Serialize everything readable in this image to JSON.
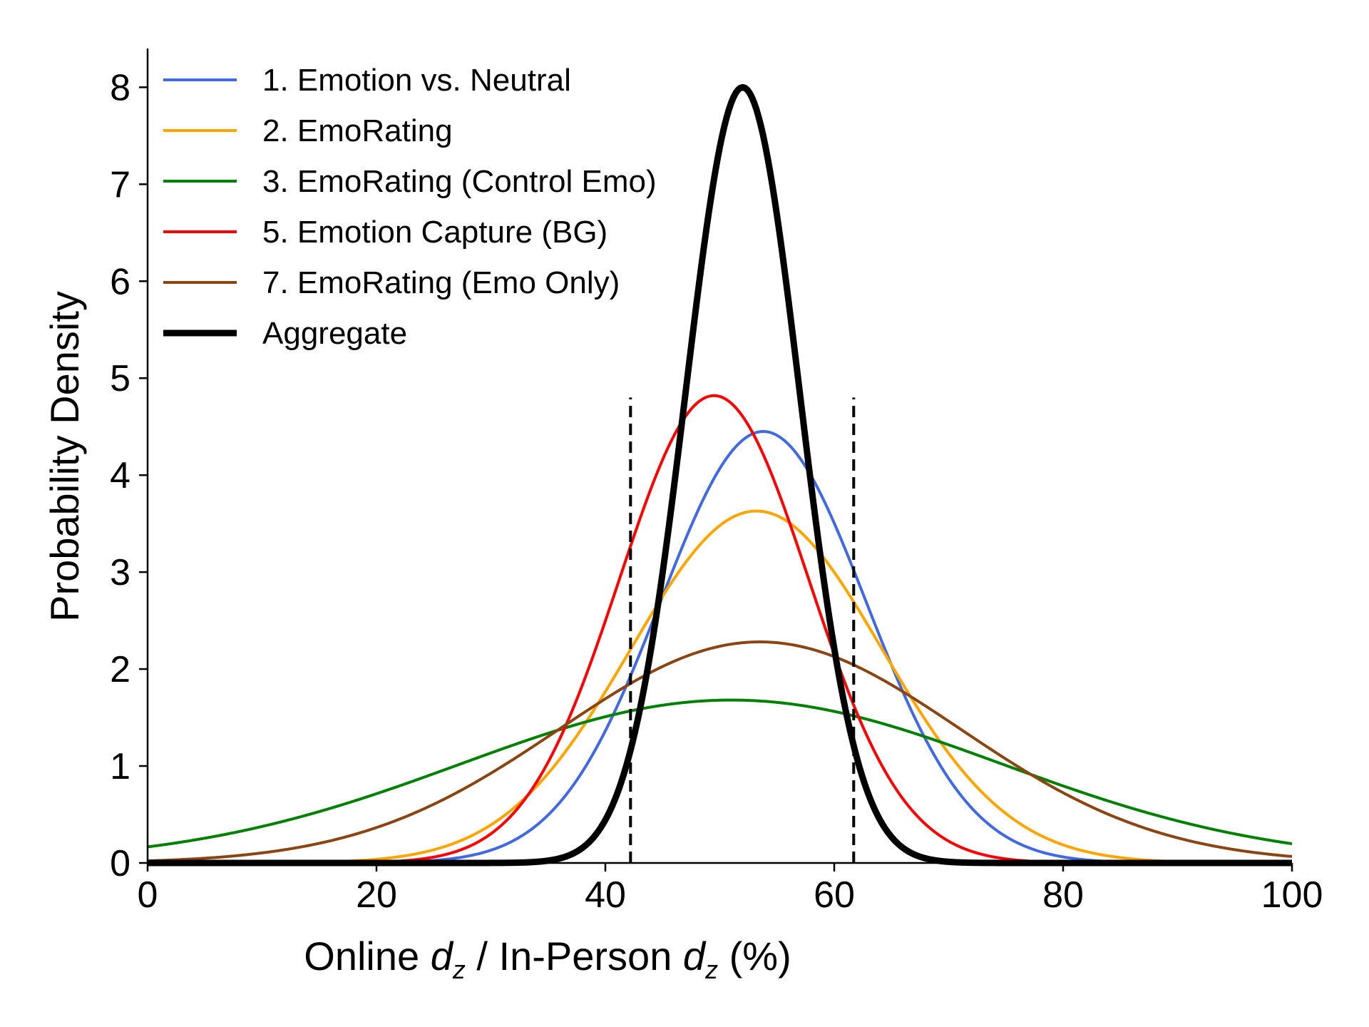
{
  "chart_data": {
    "type": "line",
    "title": "",
    "xlabel": {
      "prefix": "Online ",
      "var1_base": "d",
      "var1_sub": "z",
      "middle": " / In-Person ",
      "var2_base": "d",
      "var2_sub": "z",
      "suffix": " (%)"
    },
    "ylabel": "Probability Density",
    "xlim": [
      0,
      100
    ],
    "ylim": [
      0,
      8.4
    ],
    "xticks": [
      0,
      20,
      40,
      60,
      80,
      100
    ],
    "xtick_labels": [
      "0",
      "20",
      "40",
      "60",
      "80",
      "100"
    ],
    "yticks": [
      0,
      1,
      2,
      3,
      4,
      5,
      6,
      7,
      8
    ],
    "ytick_labels": [
      "0",
      "1",
      "2",
      "3",
      "4",
      "5",
      "6",
      "7",
      "8"
    ],
    "grid": false,
    "legend_position": "top-left",
    "series": [
      {
        "name": "1. Emotion vs. Neutral",
        "color": "#4169E1",
        "mean": 53.8,
        "sd": 8.97,
        "peak": 4.45,
        "stroke": "normal"
      },
      {
        "name": "2. EmoRating",
        "color": "#FFA500",
        "mean": 53.2,
        "sd": 11.0,
        "peak": 3.63,
        "stroke": "normal"
      },
      {
        "name": "3. EmoRating (Control Emo)",
        "color": "#008000",
        "mean": 51.0,
        "sd": 23.7,
        "peak": 1.68,
        "stroke": "normal"
      },
      {
        "name": "5. Emotion Capture (BG)",
        "color": "#FF0000",
        "mean": 49.5,
        "sd": 8.28,
        "peak": 4.82,
        "stroke": "normal"
      },
      {
        "name": "7. EmoRating (Emo Only)",
        "color": "#8B4513",
        "mean": 53.5,
        "sd": 17.5,
        "peak": 2.28,
        "stroke": "normal"
      },
      {
        "name": "Aggregate",
        "color": "#000000",
        "mean": 52.0,
        "sd": 4.99,
        "peak": 8.0,
        "stroke": "bold"
      }
    ],
    "reference_lines": [
      {
        "x": 42.2,
        "ymax": 4.8,
        "style": "dashed",
        "color": "#000000"
      },
      {
        "x": 61.7,
        "ymax": 4.8,
        "style": "dashed",
        "color": "#000000"
      }
    ]
  }
}
